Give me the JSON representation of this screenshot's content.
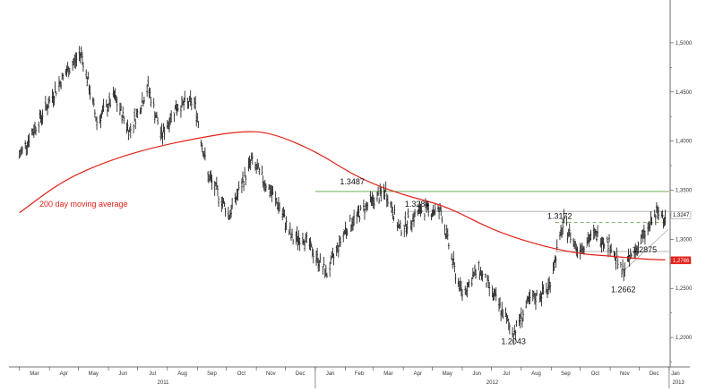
{
  "chart_data": {
    "type": "line",
    "title": "",
    "xlabel": "",
    "ylabel": "",
    "ylim": [
      1.17,
      1.54
    ],
    "grid": false,
    "y_ticks": [
      "1,5000",
      "1,4500",
      "1,4000",
      "1,3500",
      "1,3000",
      "1,2500",
      "1,2000"
    ],
    "x_month_labels": [
      "Mar",
      "Apr",
      "May",
      "Jun",
      "Jul",
      "Aug",
      "Sep",
      "Oct",
      "Nov",
      "Dec",
      "Jan",
      "Feb",
      "Mar",
      "Apr",
      "May",
      "Jun",
      "Jul",
      "Aug",
      "Sep",
      "Oct",
      "Nov",
      "Dec",
      "Jan"
    ],
    "x_year_labels": [
      "2011",
      "2012",
      "2013"
    ],
    "series": [
      {
        "name": "",
        "color": "#111111",
        "x": [
          "2011-03-01",
          "2011-03-15",
          "2011-04-01",
          "2011-04-15",
          "2011-05-04",
          "2011-05-20",
          "2011-06-07",
          "2011-06-23",
          "2011-07-12",
          "2011-07-26",
          "2011-08-10",
          "2011-08-29",
          "2011-09-12",
          "2011-09-26",
          "2011-10-04",
          "2011-10-27",
          "2011-11-15",
          "2011-11-25",
          "2011-12-08",
          "2011-12-20",
          "2012-01-13",
          "2012-02-01",
          "2012-02-24",
          "2012-03-14",
          "2012-03-28",
          "2012-04-20",
          "2012-05-10",
          "2012-05-25",
          "2012-06-01",
          "2012-06-18",
          "2012-07-05",
          "2012-07-24",
          "2012-08-08",
          "2012-08-29",
          "2012-09-14",
          "2012-09-28",
          "2012-10-17",
          "2012-11-01",
          "2012-11-13",
          "2012-11-26",
          "2012-12-10",
          "2012-12-18",
          "2012-12-28"
        ],
        "values": [
          1.385,
          1.41,
          1.44,
          1.465,
          1.49,
          1.42,
          1.445,
          1.41,
          1.455,
          1.405,
          1.435,
          1.44,
          1.365,
          1.34,
          1.325,
          1.38,
          1.35,
          1.333,
          1.3,
          1.302,
          1.265,
          1.31,
          1.335,
          1.3487,
          1.31,
          1.33,
          1.3284,
          1.265,
          1.245,
          1.27,
          1.24,
          1.2043,
          1.235,
          1.25,
          1.3172,
          1.29,
          1.305,
          1.295,
          1.2662,
          1.2875,
          1.31,
          1.325,
          1.3247
        ]
      },
      {
        "name": "200 day moving average",
        "color": "#e32119",
        "x": [
          "2011-03-01",
          "2011-04-15",
          "2011-06-01",
          "2011-07-15",
          "2011-09-01",
          "2011-10-15",
          "2011-11-15",
          "2012-01-01",
          "2012-02-15",
          "2012-04-01",
          "2012-05-15",
          "2012-07-01",
          "2012-08-15",
          "2012-09-30",
          "2012-11-01",
          "2012-12-01",
          "2012-12-28"
        ],
        "values": [
          1.327,
          1.36,
          1.38,
          1.393,
          1.403,
          1.41,
          1.409,
          1.39,
          1.362,
          1.345,
          1.334,
          1.31,
          1.295,
          1.285,
          1.283,
          1.28,
          1.279
        ]
      }
    ],
    "reference_lines": [
      {
        "type": "horizontal",
        "value": 1.3487,
        "color": "#5aa03c",
        "style": "solid"
      },
      {
        "type": "horizontal",
        "value": 1.3284,
        "color": "#aaaaaa",
        "style": "solid"
      },
      {
        "type": "horizontal",
        "value": 1.3172,
        "color": "#5aa03c",
        "style": "dashed"
      },
      {
        "type": "horizontal",
        "value": 1.2875,
        "color": "#aaaaaa",
        "style": "solid"
      },
      {
        "type": "trendline",
        "from": {
          "x": "2012-11-13",
          "y": 1.2662
        },
        "to": {
          "x": "2012-12-31",
          "y": 1.31
        },
        "color": "#aaaaaa"
      }
    ],
    "annotations": [
      {
        "text": "1.3487",
        "x": "2012-02-10",
        "y": 1.3487
      },
      {
        "text": "1.3284",
        "x": "2012-04-10",
        "y": 1.3284
      },
      {
        "text": "1.3172",
        "x": "2012-09-10",
        "y": 1.3172
      },
      {
        "text": "1.2875",
        "x": "2012-11-20",
        "y": 1.2875
      },
      {
        "text": "1.2662",
        "x": "2012-11-13",
        "y": 1.2662
      },
      {
        "text": "1.2043",
        "x": "2012-07-24",
        "y": 1.2043
      },
      {
        "text": "200 day moving average",
        "color": "#e32119"
      }
    ],
    "last_values": [
      {
        "text": "1,3247",
        "value": 1.3247,
        "color": "#111111",
        "bg": "#ffffff"
      },
      {
        "text": "1,2786",
        "value": 1.2786,
        "color": "#ffffff",
        "bg": "#e32119"
      }
    ]
  }
}
